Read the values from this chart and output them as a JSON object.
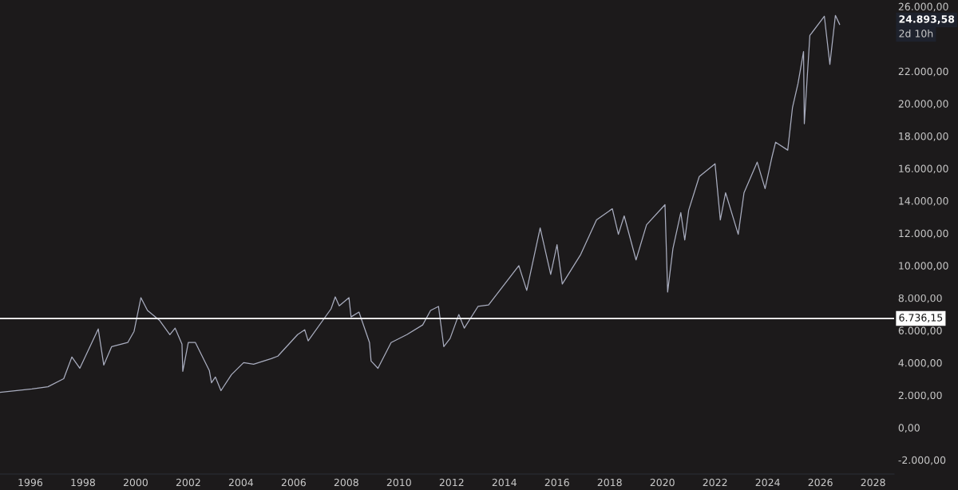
{
  "chart_data": {
    "type": "line",
    "x": [
      1994.85,
      1996.06,
      1996.67,
      1997.27,
      1997.58,
      1997.88,
      1998.58,
      1998.79,
      1999.09,
      1999.7,
      1999.94,
      2000.2,
      2000.45,
      2000.9,
      2001.3,
      2001.5,
      2001.76,
      2001.79,
      2002.0,
      2002.27,
      2002.8,
      2002.88,
      2003.03,
      2003.24,
      2003.64,
      2004.1,
      2004.48,
      2005.15,
      2005.4,
      2006.15,
      2006.42,
      2006.55,
      2007.42,
      2007.58,
      2007.73,
      2008.1,
      2008.18,
      2008.48,
      2008.88,
      2008.94,
      2009.2,
      2009.7,
      2010.3,
      2010.9,
      2011.2,
      2011.5,
      2011.7,
      2011.94,
      2012.27,
      2012.48,
      2013.0,
      2013.4,
      2014.55,
      2014.85,
      2015.36,
      2015.76,
      2016.0,
      2016.2,
      2016.9,
      2017.5,
      2018.1,
      2018.33,
      2018.55,
      2019.0,
      2019.4,
      2020.1,
      2020.2,
      2020.4,
      2020.7,
      2020.85,
      2021.0,
      2021.4,
      2022.0,
      2022.2,
      2022.4,
      2022.88,
      2023.1,
      2023.6,
      2023.9,
      2024.15,
      2024.3,
      2024.76,
      2024.94,
      2025.15,
      2025.36,
      2025.39,
      2025.6,
      2026.15,
      2026.36,
      2026.57,
      2026.73
    ],
    "series": [
      {
        "color": "#a9adbf",
        "values": [
          2180,
          2380,
          2520,
          3020,
          4360,
          3660,
          6090,
          3860,
          5000,
          5250,
          5940,
          8020,
          7230,
          6630,
          5740,
          6140,
          5150,
          3470,
          5250,
          5250,
          3510,
          2770,
          3120,
          2280,
          3270,
          4010,
          3910,
          4260,
          4410,
          5740,
          6040,
          5350,
          7330,
          8070,
          7520,
          8020,
          6830,
          7130,
          5250,
          4110,
          3660,
          5250,
          5740,
          6340,
          7230,
          7480,
          5000,
          5500,
          6980,
          6140,
          7480,
          7570,
          10000,
          8470,
          12330,
          9460,
          11290,
          8860,
          10690,
          12820,
          13510,
          11930,
          13070,
          10350,
          12520,
          13760,
          8370,
          11040,
          13270,
          11580,
          13420,
          15500,
          16290,
          12820,
          14500,
          11930,
          14500,
          16390,
          14750,
          16630,
          17620,
          17130,
          19750,
          21240,
          23220,
          18760,
          24210,
          25400,
          22430,
          25450,
          24893.58
        ]
      }
    ],
    "xlim": [
      1994.85,
      2028.8
    ],
    "xticks": [
      1996,
      1998,
      2000,
      2002,
      2004,
      2006,
      2008,
      2010,
      2012,
      2014,
      2016,
      2018,
      2020,
      2022,
      2024,
      2026,
      2028
    ],
    "ylim": [
      -2870,
      26400
    ],
    "yticks": [
      {
        "value": -2000,
        "label": "-2.000,00"
      },
      {
        "value": 0,
        "label": "0,00"
      },
      {
        "value": 2000,
        "label": "2.000,00"
      },
      {
        "value": 4000,
        "label": "4.000,00"
      },
      {
        "value": 6000,
        "label": "6.000,00"
      },
      {
        "value": 8000,
        "label": "8.000,00"
      },
      {
        "value": 10000,
        "label": "10.000,00"
      },
      {
        "value": 12000,
        "label": "12.000,00"
      },
      {
        "value": 14000,
        "label": "14.000,00"
      },
      {
        "value": 16000,
        "label": "16.000,00"
      },
      {
        "value": 18000,
        "label": "18.000,00"
      },
      {
        "value": 20000,
        "label": "20.000,00"
      },
      {
        "value": 22000,
        "label": "22.000,00"
      },
      {
        "value": 26000,
        "label": "26.000,00"
      }
    ],
    "ref_lines": [
      {
        "axis": "y",
        "value": 6736.15,
        "label": "6.736,15",
        "color": "#ffffff"
      }
    ],
    "annotations": [
      "24.893,58",
      "2d 10h"
    ],
    "grid": false,
    "legend": false
  }
}
